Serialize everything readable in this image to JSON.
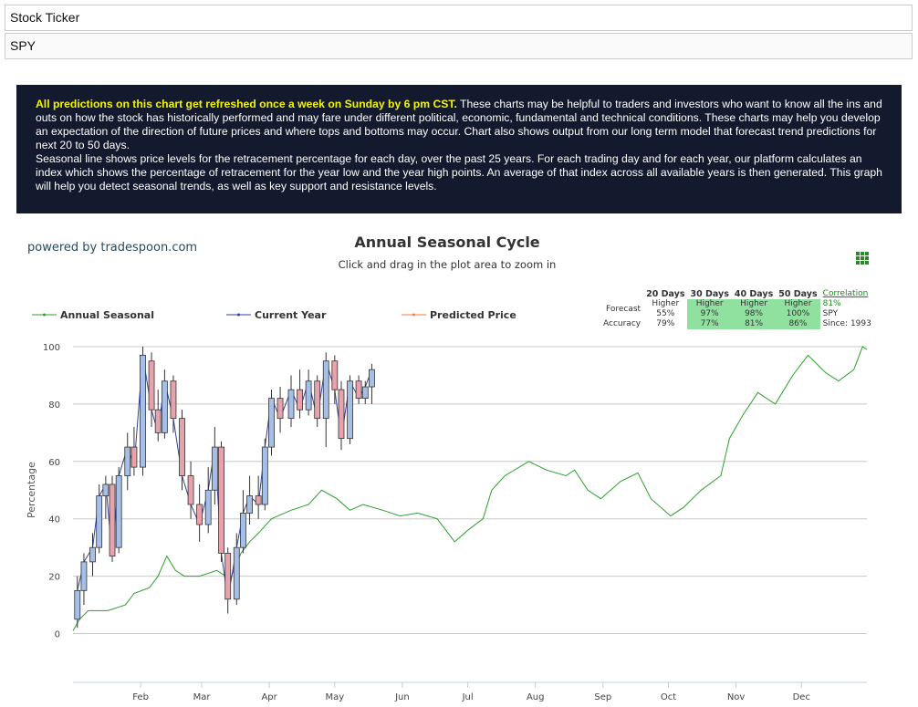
{
  "header": {
    "ticker_label": "Stock Ticker",
    "ticker_value": "SPY"
  },
  "info": {
    "highlight": "All predictions on this chart get refreshed once a week on Sunday by 6 pm CST.",
    "text1": " These charts may be helpful to traders and investors who want to know all the ins and outs on how the stock has historically performed and may fare under different political, economic, fundamental and technical conditions. These charts may help you develop an expectation of the direction of future prices and where tops and bottoms may occur. Chart also shows output from our long term model that forecast trend predictions for next 20 to 50 days.",
    "text2": "Seasonal line shows price levels for the retracement percentage for each day, over the past 25 years. For each trading day and for each year, our platform calculates an index which shows the percentage of retracement for the year low and the year high points. An average of that index across all available years is then generated. This graph will help you detect seasonal trends, as well as key support and resistance levels."
  },
  "powered_by": "powered by tradespoon.com",
  "forecast_table": {
    "headers": [
      "20 Days",
      "30 Days",
      "40 Days",
      "50 Days"
    ],
    "correlation_link": "Correlation",
    "forecast_label": "Forecast",
    "forecast": [
      [
        "Higher",
        "55%"
      ],
      [
        "Higher",
        "97%"
      ],
      [
        "Higher",
        "98%"
      ],
      [
        "Higher",
        "100%"
      ]
    ],
    "correlation_value": "81%",
    "ticker": "SPY",
    "accuracy_label": "Accuracy",
    "accuracy": [
      "79%",
      "77%",
      "81%",
      "86%"
    ],
    "since": "Since: 1993"
  },
  "chart_data": {
    "type": "line",
    "title": "Annual Seasonal Cycle",
    "subtitle": "Click and drag in the plot area to zoom in",
    "ylabel": "Percentage",
    "xlim": [
      1,
      365
    ],
    "ylim": [
      -17,
      100
    ],
    "yticks": [
      0,
      20,
      40,
      60,
      80,
      100
    ],
    "grid": true,
    "xticks": [
      {
        "value": 32,
        "label": "Feb"
      },
      {
        "value": 60,
        "label": "Mar"
      },
      {
        "value": 91,
        "label": "Apr"
      },
      {
        "value": 121,
        "label": "May"
      },
      {
        "value": 152,
        "label": "Jun"
      },
      {
        "value": 182,
        "label": "Jul"
      },
      {
        "value": 213,
        "label": "Aug"
      },
      {
        "value": 244,
        "label": "Sep"
      },
      {
        "value": 274,
        "label": "Oct"
      },
      {
        "value": 305,
        "label": "Nov"
      },
      {
        "value": 335,
        "label": "Dec"
      }
    ],
    "series": [
      {
        "name": "Annual Seasonal",
        "color": "#2ca02c",
        "x": [
          1,
          4,
          8,
          17,
          25,
          29,
          36,
          40,
          44,
          48,
          52,
          59,
          67,
          73,
          78,
          82,
          86,
          92,
          101,
          109,
          115,
          122,
          128,
          134,
          143,
          151,
          159,
          168,
          172,
          176,
          182,
          189,
          193,
          199,
          210,
          218,
          227,
          231,
          237,
          243,
          252,
          260,
          266,
          275,
          281,
          289,
          298,
          302,
          308,
          315,
          323,
          331,
          338,
          346,
          352,
          359,
          363,
          365
        ],
        "values": [
          1,
          5,
          8,
          8,
          10,
          14,
          16,
          20,
          27,
          22,
          20,
          20,
          22,
          19,
          28,
          32,
          35,
          40,
          43,
          45,
          50,
          47,
          43,
          45,
          43,
          41,
          42,
          40,
          36,
          32,
          36,
          40,
          50,
          55,
          60,
          57,
          55,
          57,
          50,
          47,
          53,
          56,
          47,
          41,
          44,
          50,
          55,
          68,
          76,
          84,
          80,
          90,
          97,
          91,
          88,
          92,
          100,
          99
        ]
      },
      {
        "name": "Current Year",
        "type": "candlestick",
        "color": "#2f3f9e",
        "up_color": "#a6bfe8",
        "down_color": "#e6a3ab",
        "x": [
          3,
          6,
          10,
          13,
          16,
          19,
          22,
          26,
          29,
          33,
          37,
          40,
          43,
          47,
          51,
          55,
          59,
          63,
          66,
          69,
          72,
          76,
          79,
          82,
          86,
          89,
          92,
          96,
          101,
          105,
          109,
          113,
          117,
          121,
          124,
          128,
          132,
          135,
          138
        ],
        "open": [
          5,
          15,
          25,
          30,
          48,
          52,
          30,
          55,
          65,
          58,
          95,
          78,
          70,
          88,
          75,
          55,
          45,
          38,
          50,
          65,
          28,
          12,
          30,
          42,
          48,
          45,
          65,
          82,
          75,
          85,
          78,
          88,
          75,
          95,
          85,
          68,
          88,
          82,
          86
        ],
        "high": [
          20,
          28,
          35,
          52,
          55,
          55,
          58,
          70,
          72,
          100,
          98,
          85,
          92,
          90,
          78,
          60,
          52,
          58,
          72,
          67,
          30,
          35,
          50,
          55,
          55,
          68,
          85,
          86,
          90,
          92,
          92,
          90,
          98,
          97,
          88,
          90,
          90,
          88,
          94
        ],
        "low": [
          2,
          10,
          20,
          28,
          40,
          25,
          28,
          50,
          55,
          55,
          72,
          67,
          68,
          70,
          50,
          40,
          32,
          35,
          45,
          25,
          7,
          10,
          28,
          38,
          40,
          43,
          62,
          70,
          72,
          75,
          76,
          72,
          65,
          80,
          64,
          66,
          80,
          80,
          80
        ],
        "close": [
          15,
          25,
          30,
          48,
          52,
          27,
          55,
          65,
          58,
          97,
          78,
          70,
          88,
          75,
          55,
          45,
          38,
          50,
          65,
          28,
          12,
          30,
          42,
          48,
          45,
          65,
          82,
          75,
          85,
          78,
          88,
          75,
          95,
          85,
          68,
          88,
          82,
          86,
          92
        ]
      },
      {
        "name": "Predicted Price",
        "color": "#f07f3c"
      }
    ]
  }
}
